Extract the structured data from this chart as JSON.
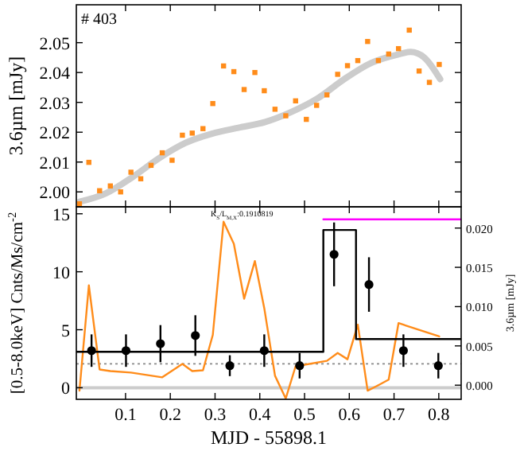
{
  "chart_data": [
    {
      "type": "scatter",
      "ylabel": "3.6µm [mJy]",
      "annotations": [
        "# 403"
      ],
      "xlim": [
        -0.01,
        0.85
      ],
      "ylim": [
        1.995,
        2.0627
      ],
      "xticks": [
        0.1,
        0.2,
        0.3,
        0.4,
        0.5,
        0.6,
        0.7,
        0.8
      ],
      "yticks": [
        {
          "value": 2.0,
          "label": "2.00"
        },
        {
          "value": 2.01,
          "label": "2.01"
        },
        {
          "value": 2.02,
          "label": "2.02"
        },
        {
          "value": 2.03,
          "label": "2.03"
        },
        {
          "value": 2.04,
          "label": "2.04"
        },
        {
          "value": 2.05,
          "label": "2.05"
        }
      ],
      "tick_labels": "y",
      "grid": false,
      "series": [
        {
          "type": "line",
          "color": "#cccccc",
          "x": [
            -0.003,
            0.056,
            0.115,
            0.175,
            0.234,
            0.293,
            0.352,
            0.412,
            0.471,
            0.53,
            0.589,
            0.649,
            0.708,
            0.737,
            0.767,
            0.803
          ],
          "values": [
            1.9967,
            1.9995,
            2.0049,
            2.0113,
            2.0164,
            2.0195,
            2.0215,
            2.0234,
            2.0268,
            2.0314,
            2.0378,
            2.0432,
            2.046,
            2.0469,
            2.0451,
            2.0378
          ]
        },
        {
          "color": "#ff8c1a",
          "marker": "square",
          "x": [
            -0.003,
            0.018,
            0.042,
            0.066,
            0.089,
            0.112,
            0.134,
            0.157,
            0.182,
            0.204,
            0.227,
            0.249,
            0.273,
            0.295,
            0.319,
            0.342,
            0.365,
            0.389,
            0.41,
            0.434,
            0.458,
            0.48,
            0.504,
            0.527,
            0.55,
            0.574,
            0.596,
            0.619,
            0.641,
            0.665,
            0.688,
            0.71,
            0.734,
            0.756,
            0.779,
            0.801
          ],
          "values": [
            1.996,
            2.0099,
            2.0004,
            2.002,
            2.0,
            2.0066,
            2.0044,
            2.0089,
            2.0131,
            2.0106,
            2.019,
            2.0197,
            2.0212,
            2.0296,
            2.0422,
            2.0403,
            2.0343,
            2.04,
            2.0339,
            2.0277,
            2.0255,
            2.0305,
            2.0243,
            2.029,
            2.0325,
            2.0394,
            2.0423,
            2.044,
            2.0504,
            2.044,
            2.0462,
            2.048,
            2.0542,
            2.0405,
            2.0367,
            2.0427
          ]
        }
      ]
    },
    {
      "type": "scatter",
      "xlabel": "MJD - 55898.1",
      "ylabel": "[0.5-8.0keV] Cnts/Ms/cm$^{-2}$",
      "y2label": "3.6µm [mJy]",
      "annotations": [
        "K$_{S}$/L$_{M,X}$:0.1910819"
      ],
      "xlim": [
        -0.01,
        0.85
      ],
      "ylim": [
        -1.0,
        15.6
      ],
      "y2lim": [
        -0.0018,
        0.0227
      ],
      "xticks": [
        0.1,
        0.2,
        0.3,
        0.4,
        0.5,
        0.6,
        0.7,
        0.8
      ],
      "yticks": [
        0,
        5,
        10,
        15
      ],
      "y2ticks": [
        {
          "value": 0,
          "label": "0.000"
        },
        {
          "value": 0.005,
          "label": "0.005"
        },
        {
          "value": 0.01,
          "label": "0.010"
        },
        {
          "value": 0.015,
          "label": "0.015"
        },
        {
          "value": 0.02,
          "label": "0.020"
        }
      ],
      "grid": false,
      "ref_lines": [
        {
          "axis": "y",
          "value": 0,
          "color": "#cccccc"
        },
        {
          "axis": "y",
          "value": 2.06,
          "color": "#888888",
          "line_style": "dotted"
        }
      ],
      "series": [
        {
          "type": "line",
          "axis": "y2",
          "color": "#ff8c1a",
          "x": [
            -0.003,
            0.018,
            0.042,
            0.066,
            0.112,
            0.182,
            0.227,
            0.249,
            0.273,
            0.295,
            0.319,
            0.342,
            0.365,
            0.389,
            0.41,
            0.434,
            0.458,
            0.48,
            0.55,
            0.574,
            0.596,
            0.619,
            0.641,
            0.665,
            0.688,
            0.71,
            0.801
          ],
          "values": [
            -0.0007,
            0.0127,
            0.002,
            0.0018,
            0.0016,
            0.001,
            0.0027,
            0.0018,
            0.0019,
            0.0064,
            0.0208,
            0.018,
            0.011,
            0.0158,
            0.0098,
            0.0012,
            -0.0017,
            0.0024,
            0.0031,
            0.0041,
            0.0033,
            0.0077,
            -0.0007,
            0.0,
            0.0007,
            0.0079,
            0.0062
          ]
        },
        {
          "type": "line",
          "axis": "y2",
          "color": "#ff00ff",
          "x": [
            0.542,
            0.848
          ],
          "values": [
            0.0211,
            0.0211
          ]
        },
        {
          "type": "step",
          "color": "#000000",
          "x": [
            -0.01,
            0.542,
            0.615,
            0.85
          ],
          "values": [
            3.1,
            13.6,
            4.2,
            4.2
          ]
        },
        {
          "color": "#000000",
          "marker": "circle",
          "x": [
            0.024,
            0.101,
            0.178,
            0.256,
            0.333,
            0.41,
            0.489,
            0.566,
            0.644,
            0.721,
            0.799
          ],
          "values": [
            3.2,
            3.2,
            3.8,
            4.5,
            1.9,
            3.2,
            1.9,
            11.5,
            8.9,
            3.2,
            1.9
          ],
          "errors": [
            1.4,
            1.4,
            1.6,
            1.75,
            0.9,
            1.4,
            1.1,
            2.75,
            2.35,
            1.4,
            1.1
          ]
        }
      ]
    }
  ]
}
